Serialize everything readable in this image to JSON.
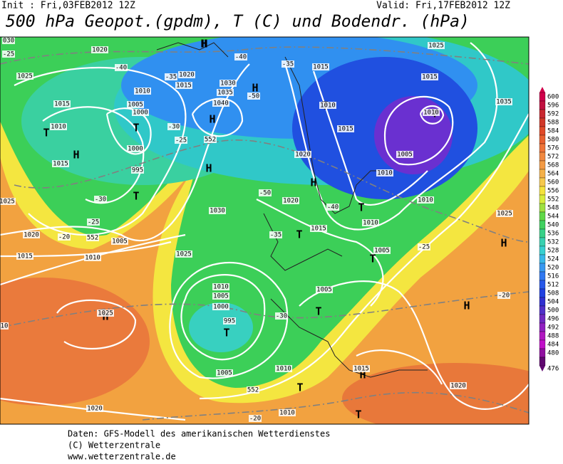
{
  "header": {
    "init": "Init : Fri,03FEB2012 12Z",
    "valid": "Valid: Fri,17FEB2012 12Z",
    "title": "500 hPa Geopot.(gpdm), T (C) und Bodendr. (hPa)"
  },
  "colorbar": {
    "labels": [
      "600",
      "596",
      "592",
      "588",
      "584",
      "580",
      "576",
      "572",
      "568",
      "564",
      "560",
      "556",
      "552",
      "548",
      "544",
      "540",
      "536",
      "532",
      "528",
      "524",
      "520",
      "516",
      "512",
      "508",
      "504",
      "500",
      "496",
      "492",
      "488",
      "484",
      "480",
      "476"
    ]
  },
  "map": {
    "labels": [
      "030",
      "1020",
      "1025",
      "-25",
      "-40",
      "1020",
      "1010",
      "1015",
      "1005",
      "1000",
      "1015",
      "1010",
      "T",
      "T",
      "H",
      "1015",
      "1000",
      "995",
      "T",
      "1040",
      "1035",
      "1030",
      "H",
      "552",
      "-35",
      "-30",
      "-25",
      "H",
      "H",
      "-40",
      "-35",
      "1015",
      "-50",
      "H",
      "T",
      "1010",
      "1015",
      "1020",
      "H",
      "-50",
      "1020",
      "-40",
      "T",
      "1015",
      "1010",
      "1010",
      "1010",
      "1005",
      "T",
      "1025",
      "1010",
      "1015",
      "1025",
      "1035",
      "1030",
      "-35",
      "T",
      "-30",
      "-25",
      "-20",
      "1020",
      "1015",
      "1010",
      "1005",
      "552",
      "1025",
      "1025",
      "H",
      "1005",
      "-25",
      "T",
      "H",
      "1010",
      "1005",
      "1000",
      "995",
      "T",
      "1005",
      "T",
      "-30",
      "-20",
      "H",
      "H",
      "1025",
      "1005",
      "1010",
      "1015",
      "H",
      "T",
      "1020",
      "T",
      "1020",
      "552",
      "1010",
      "-20",
      "10"
    ]
  },
  "footer": {
    "line1": "Daten: GFS-Modell des amerikanischen Wetterdienstes",
    "line2": "(C) Wetterzentrale",
    "line3": "www.wetterzentrale.de"
  }
}
